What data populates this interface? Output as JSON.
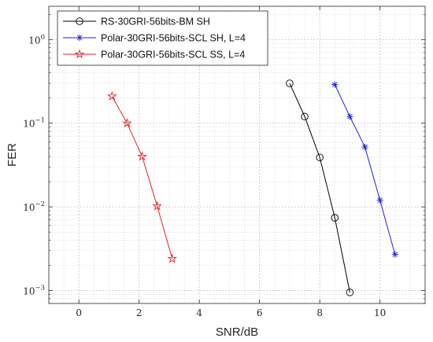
{
  "chart_data": {
    "type": "line",
    "xlabel": "SNR/dB",
    "ylabel": "FER",
    "xlim": [
      -1,
      11.5
    ],
    "ylim": [
      0.0007,
      2.5
    ],
    "yscale": "log",
    "grid": true,
    "minor_grid": true,
    "legend_position": "top-left",
    "x_ticks": [
      0,
      2,
      4,
      6,
      8,
      10
    ],
    "x_tick_labels": [
      "0",
      "2",
      "4",
      "6",
      "8",
      "10"
    ],
    "y_ticks": [
      0.001,
      0.01,
      0.1,
      1
    ],
    "y_tick_labels": [
      {
        "base": "10",
        "exp": "−3"
      },
      {
        "base": "10",
        "exp": "−2"
      },
      {
        "base": "10",
        "exp": "−1"
      },
      {
        "base": "10",
        "exp": "0"
      }
    ],
    "series": [
      {
        "name": "RS-30GRI-56bits-BM SH",
        "color": "#000000",
        "marker": "circle",
        "x": [
          7,
          7.5,
          8,
          8.5,
          9
        ],
        "y": [
          0.3,
          0.12,
          0.039,
          0.0074,
          0.00095
        ]
      },
      {
        "name": "Polar-30GRI-56bits-SCL SH, L=4",
        "color": "#1f1fe0",
        "marker": "asterisk",
        "x": [
          8.5,
          9,
          9.5,
          10,
          10.5
        ],
        "y": [
          0.29,
          0.12,
          0.052,
          0.012,
          0.0027
        ]
      },
      {
        "name": "Polar-30GRI-56bits-SCL SS, L=4",
        "color": "#e3262b",
        "marker": "pentagram",
        "x": [
          1.1,
          1.6,
          2.1,
          2.6,
          3.1
        ],
        "y": [
          0.21,
          0.1,
          0.04,
          0.0102,
          0.0024
        ]
      }
    ]
  }
}
